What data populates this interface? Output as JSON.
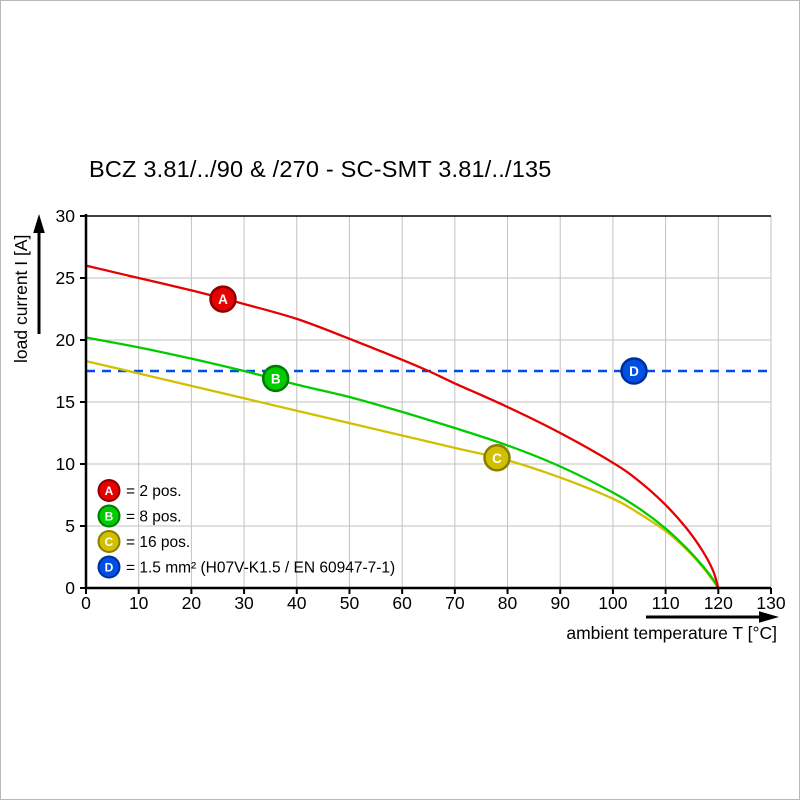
{
  "title": "BCZ 3.81/../90 & /270 - SC-SMT 3.81/../135",
  "chart_data": {
    "type": "line",
    "title": "BCZ 3.81/../90 & /270 - SC-SMT 3.81/../135",
    "xlabel": "ambient temperature T [°C]",
    "ylabel": "load current I [A]",
    "xlim": [
      0,
      130
    ],
    "ylim": [
      0,
      30
    ],
    "x_ticks": [
      0,
      10,
      20,
      30,
      40,
      50,
      60,
      70,
      80,
      90,
      100,
      110,
      120,
      130
    ],
    "y_ticks": [
      0,
      5,
      10,
      15,
      20,
      25,
      30
    ],
    "grid": true,
    "grid_color": "#c2c2c2",
    "axis_color": "#000000",
    "legend_position": "lower-left-inside",
    "series": [
      {
        "id": "A",
        "name": "2 pos.",
        "color": "#e60000",
        "marker_stroke": "#8f0000",
        "marker_at": [
          26,
          23.3
        ],
        "points": [
          [
            0,
            26.0
          ],
          [
            10,
            25.0
          ],
          [
            20,
            24.0
          ],
          [
            30,
            22.9
          ],
          [
            40,
            21.7
          ],
          [
            50,
            20.1
          ],
          [
            60,
            18.4
          ],
          [
            65,
            17.5
          ],
          [
            70,
            16.5
          ],
          [
            80,
            14.6
          ],
          [
            90,
            12.5
          ],
          [
            100,
            10.1
          ],
          [
            105,
            8.6
          ],
          [
            110,
            6.7
          ],
          [
            114,
            4.8
          ],
          [
            117,
            3.0
          ],
          [
            119,
            1.4
          ],
          [
            120,
            0
          ]
        ]
      },
      {
        "id": "B",
        "name": "8 pos.",
        "color": "#00cc00",
        "marker_stroke": "#007a00",
        "marker_at": [
          36,
          16.9
        ],
        "points": [
          [
            0,
            20.2
          ],
          [
            10,
            19.4
          ],
          [
            20,
            18.5
          ],
          [
            30,
            17.5
          ],
          [
            40,
            16.4
          ],
          [
            50,
            15.4
          ],
          [
            60,
            14.2
          ],
          [
            70,
            12.9
          ],
          [
            80,
            11.5
          ],
          [
            90,
            9.8
          ],
          [
            100,
            7.7
          ],
          [
            105,
            6.4
          ],
          [
            110,
            4.8
          ],
          [
            114,
            3.2
          ],
          [
            117,
            1.8
          ],
          [
            119,
            0.7
          ],
          [
            120,
            0
          ]
        ]
      },
      {
        "id": "C",
        "name": "16 pos.",
        "color": "#d2c000",
        "marker_stroke": "#8a7e00",
        "marker_at": [
          78,
          10.5
        ],
        "points": [
          [
            0,
            18.3
          ],
          [
            10,
            17.3
          ],
          [
            20,
            16.3
          ],
          [
            30,
            15.3
          ],
          [
            40,
            14.3
          ],
          [
            50,
            13.3
          ],
          [
            60,
            12.3
          ],
          [
            70,
            11.3
          ],
          [
            80,
            10.3
          ],
          [
            90,
            8.9
          ],
          [
            100,
            7.2
          ],
          [
            105,
            6.0
          ],
          [
            110,
            4.6
          ],
          [
            114,
            3.1
          ],
          [
            117,
            1.7
          ],
          [
            119,
            0.6
          ],
          [
            120,
            0
          ]
        ]
      },
      {
        "id": "D",
        "name": "1.5 mm² (H07V-K1.5 / EN 60947-7-1)",
        "color": "#0050e6",
        "marker_stroke": "#002e99",
        "style": "dashed-hline",
        "value": 17.5,
        "marker_at": [
          104,
          17.5
        ]
      }
    ],
    "legend": [
      {
        "letter": "A",
        "text": "= 2 pos."
      },
      {
        "letter": "B",
        "text": "= 8 pos."
      },
      {
        "letter": "C",
        "text": "= 16 pos."
      },
      {
        "letter": "D",
        "text": "= 1.5 mm² (H07V-K1.5 / EN 60947-7-1)"
      }
    ]
  }
}
